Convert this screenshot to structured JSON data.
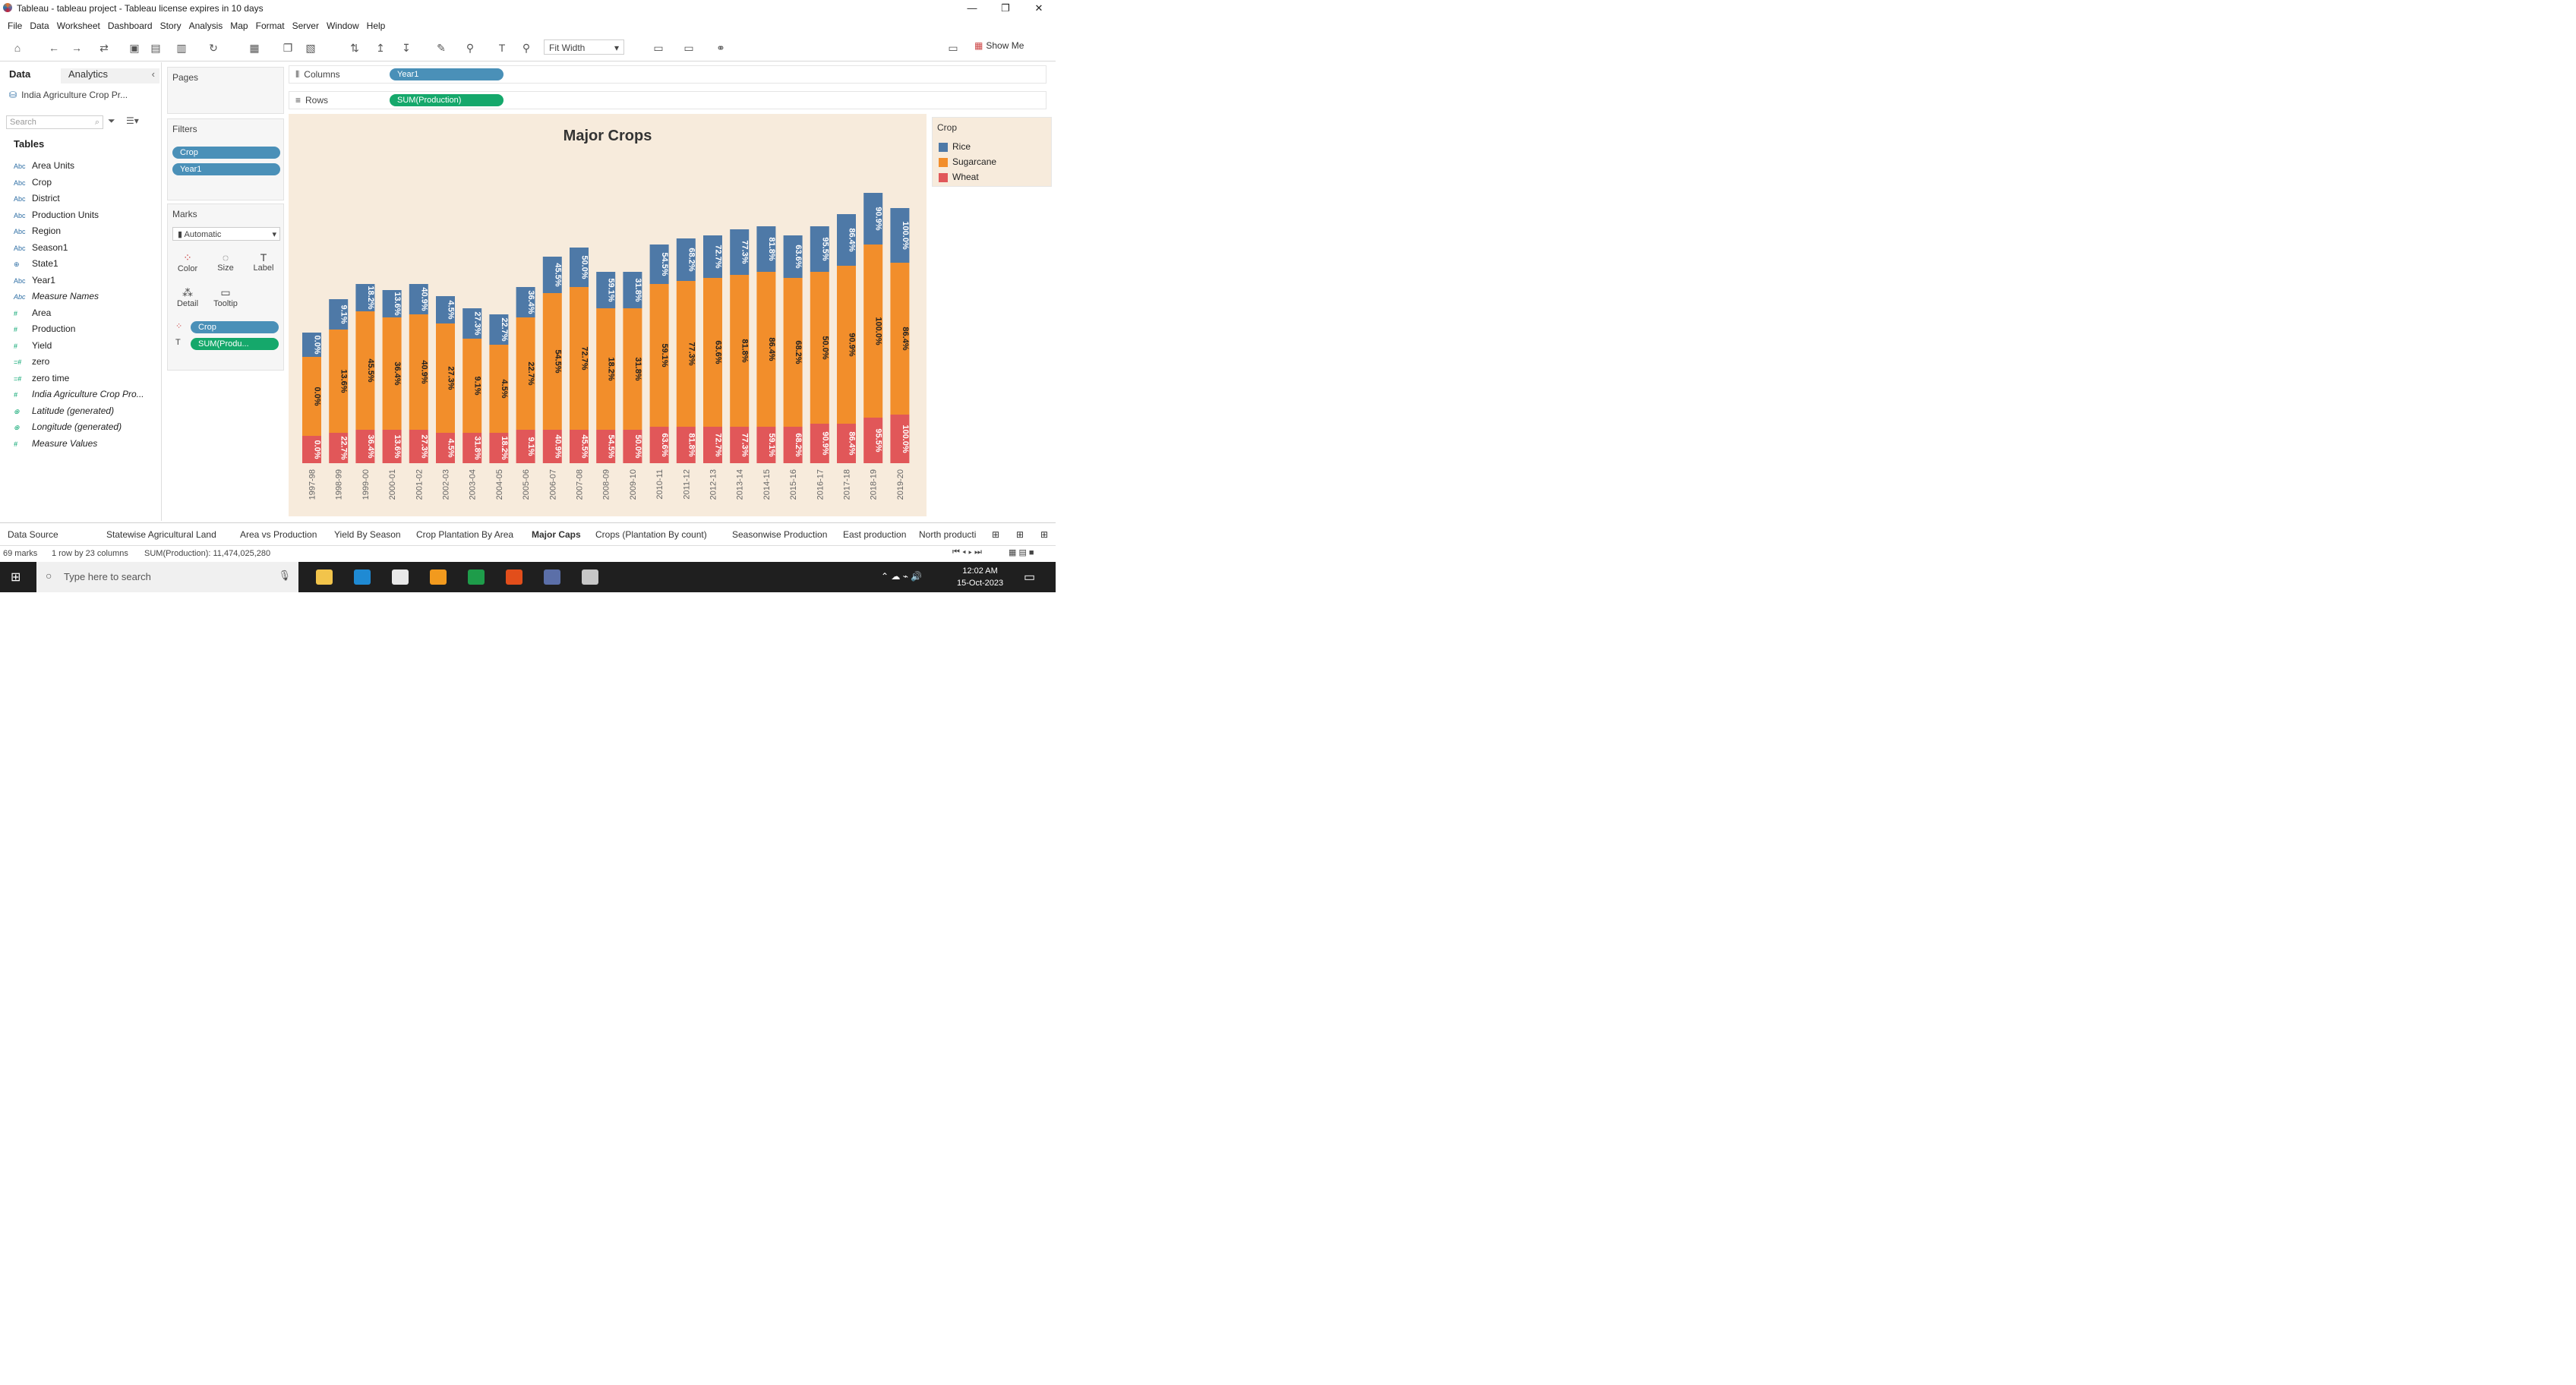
{
  "window": {
    "title": "Tableau - tableau project - Tableau license expires in 10 days"
  },
  "menu": [
    "File",
    "Data",
    "Worksheet",
    "Dashboard",
    "Story",
    "Analysis",
    "Map",
    "Format",
    "Server",
    "Window",
    "Help"
  ],
  "toolbar": {
    "fit": "Fit Width",
    "show_me": "Show Me"
  },
  "left_pane": {
    "tab_data": "Data",
    "tab_analytics": "Analytics",
    "datasource": "India Agriculture Crop Pr...",
    "search_placeholder": "Search",
    "tables_heading": "Tables",
    "fields": [
      {
        "type": "Abc",
        "name": "Area Units",
        "measure": false,
        "italic": false
      },
      {
        "type": "Abc",
        "name": "Crop",
        "measure": false,
        "italic": false
      },
      {
        "type": "Abc",
        "name": "District",
        "measure": false,
        "italic": false
      },
      {
        "type": "Abc",
        "name": "Production Units",
        "measure": false,
        "italic": false
      },
      {
        "type": "Abc",
        "name": "Region",
        "measure": false,
        "italic": false
      },
      {
        "type": "Abc",
        "name": "Season1",
        "measure": false,
        "italic": false
      },
      {
        "type": "⊕",
        "name": "State1",
        "measure": false,
        "italic": false
      },
      {
        "type": "Abc",
        "name": "Year1",
        "measure": false,
        "italic": false
      },
      {
        "type": "Abc",
        "name": "Measure Names",
        "measure": false,
        "italic": true
      },
      {
        "type": "#",
        "name": "Area",
        "measure": true,
        "italic": false
      },
      {
        "type": "#",
        "name": "Production",
        "measure": true,
        "italic": false
      },
      {
        "type": "#",
        "name": "Yield",
        "measure": true,
        "italic": false
      },
      {
        "type": "=#",
        "name": "zero",
        "measure": true,
        "italic": false
      },
      {
        "type": "=#",
        "name": "zero time",
        "measure": true,
        "italic": false
      },
      {
        "type": "#",
        "name": "India Agriculture Crop Pro...",
        "measure": true,
        "italic": true
      },
      {
        "type": "⊕",
        "name": "Latitude (generated)",
        "measure": true,
        "italic": true
      },
      {
        "type": "⊕",
        "name": "Longitude (generated)",
        "measure": true,
        "italic": true
      },
      {
        "type": "#",
        "name": "Measure Values",
        "measure": true,
        "italic": true
      }
    ]
  },
  "cards": {
    "pages": "Pages",
    "filters": "Filters",
    "filter_pills": [
      "Crop",
      "Year1"
    ],
    "marks": "Marks",
    "mark_type": "Automatic",
    "mark_buttons": [
      "Color",
      "Size",
      "Label",
      "Detail",
      "Tooltip"
    ],
    "mark_pills": [
      "Crop",
      "SUM(Produ..."
    ]
  },
  "shelves": {
    "columns_label": "Columns",
    "columns_pill": "Year1",
    "rows_label": "Rows",
    "rows_pill": "SUM(Production)"
  },
  "legend": {
    "title": "Crop",
    "items": [
      {
        "name": "Rice",
        "color": "#4e79a7"
      },
      {
        "name": "Sugarcane",
        "color": "#f28e2b"
      },
      {
        "name": "Wheat",
        "color": "#e15759"
      }
    ]
  },
  "chart_data": {
    "type": "bar",
    "stacked": true,
    "title": "Major Crops",
    "categories": [
      "1997-98",
      "1998-99",
      "1999-00",
      "2000-01",
      "2001-02",
      "2002-03",
      "2003-04",
      "2004-05",
      "2005-06",
      "2006-07",
      "2007-08",
      "2008-09",
      "2009-10",
      "2010-11",
      "2011-12",
      "2012-13",
      "2013-14",
      "2014-15",
      "2015-16",
      "2016-17",
      "2017-18",
      "2018-19",
      "2019-20"
    ],
    "series": [
      {
        "name": "Wheat",
        "color": "#e15759",
        "values": [
          9,
          10,
          11,
          11,
          11,
          10,
          10,
          10,
          11,
          11,
          11,
          11,
          11,
          12,
          12,
          12,
          12,
          12,
          12,
          13,
          13,
          15,
          16
        ],
        "labels": [
          "0.0%",
          "22.7%",
          "36.4%",
          "13.6%",
          "27.3%",
          "4.5%",
          "31.8%",
          "18.2%",
          "9.1%",
          "40.9%",
          "45.5%",
          "54.5%",
          "50.0%",
          "63.6%",
          "81.8%",
          "72.7%",
          "77.3%",
          "59.1%",
          "68.2%",
          "90.9%",
          "86.4%",
          "95.5%",
          "100.0%"
        ]
      },
      {
        "name": "Sugarcane",
        "color": "#f28e2b",
        "values": [
          26,
          34,
          39,
          37,
          38,
          36,
          31,
          29,
          37,
          45,
          47,
          40,
          40,
          47,
          48,
          49,
          50,
          51,
          49,
          50,
          52,
          57,
          50
        ],
        "labels": [
          "0.0%",
          "13.6%",
          "45.5%",
          "36.4%",
          "40.9%",
          "27.3%",
          "9.1%",
          "4.5%",
          "22.7%",
          "54.5%",
          "72.7%",
          "18.2%",
          "31.8%",
          "59.1%",
          "77.3%",
          "63.6%",
          "81.8%",
          "86.4%",
          "68.2%",
          "50.0%",
          "90.9%",
          "100.0%",
          "86.4%"
        ]
      },
      {
        "name": "Rice",
        "color": "#4e79a7",
        "values": [
          8,
          10,
          9,
          9,
          10,
          9,
          10,
          10,
          10,
          12,
          13,
          12,
          12,
          13,
          14,
          14,
          15,
          15,
          14,
          15,
          17,
          17,
          18
        ],
        "labels": [
          "0.0%",
          "9.1%",
          "18.2%",
          "13.6%",
          "40.9%",
          "4.5%",
          "27.3%",
          "22.7%",
          "36.4%",
          "45.5%",
          "50.0%",
          "59.1%",
          "31.8%",
          "54.5%",
          "68.2%",
          "72.7%",
          "77.3%",
          "81.8%",
          "63.6%",
          "95.5%",
          "86.4%",
          "90.9%",
          "100.0%"
        ]
      }
    ],
    "ylim": [
      0,
      100
    ],
    "xlabel": "",
    "ylabel": "",
    "legend_position": "right"
  },
  "sheet_tabs": [
    "Data Source",
    "Statewise Agricultural Land",
    "Area vs Production",
    "Yield By Season",
    "Crop Plantation By Area",
    "Major Caps",
    "Crops (Plantation By count)",
    "Seasonwise Production",
    "East production",
    "North producti"
  ],
  "active_tab": "Major Caps",
  "status": {
    "marks": "69 marks",
    "rows": "1 row by 23 columns",
    "sum": "SUM(Production): 11,474,025,280"
  },
  "taskbar": {
    "search_placeholder": "Type here to search",
    "time": "12:02 AM",
    "date": "15-Oct-2023"
  }
}
